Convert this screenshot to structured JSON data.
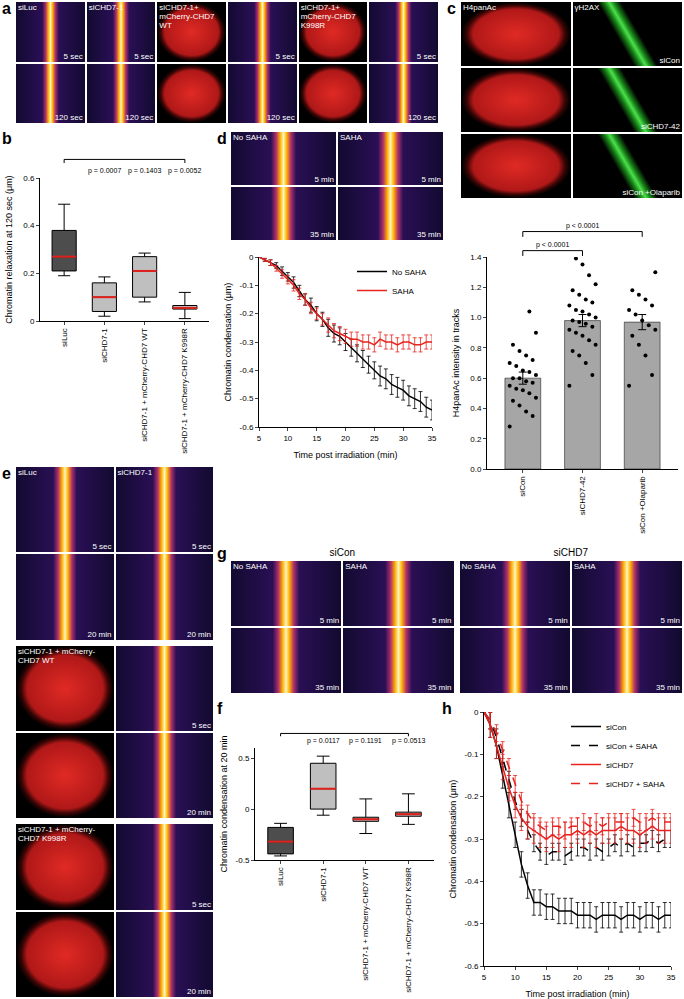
{
  "chart_data": [
    {
      "panel": "b",
      "type": "box",
      "y_label": "Chromatin relaxation at 120 sec (μm)",
      "categories": [
        "siLuc",
        "siCHD7-1",
        "siCHD7-1 + mCherry-CHD7 WT",
        "siCHD7-1 + mCherry-CHD7 K998R"
      ],
      "colors": [
        "#4d4d4d",
        "#bfbfbf",
        "#bfbfbf",
        "#bfbfbf"
      ],
      "lowerfence": [
        0.19,
        0.02,
        0.08,
        0.01
      ],
      "q1": [
        0.21,
        0.04,
        0.1,
        0.05
      ],
      "median": [
        0.27,
        0.1,
        0.21,
        0.055
      ],
      "q3": [
        0.38,
        0.16,
        0.27,
        0.065
      ],
      "upperfence": [
        0.49,
        0.185,
        0.285,
        0.12
      ],
      "ylim": [
        0,
        0.6
      ],
      "yticks": [
        0,
        0.2,
        0.4,
        0.6
      ],
      "annotations": [
        {
          "category": "siCHD7-1",
          "text": "p = 0.0007"
        },
        {
          "category": "siCHD7-1 + mCherry-CHD7 WT",
          "text": "p = 0.1403"
        },
        {
          "category": "siCHD7-1 + mCherry-CHD7 K998R",
          "text": "p = 0.0052"
        }
      ]
    },
    {
      "type": "bar",
      "y_label": "H4panAc intensity in tracks",
      "categories": [
        "siCon",
        "siCHD7-42",
        "siCon +Olaparib"
      ],
      "values": [
        0.6,
        0.98,
        0.97
      ],
      "errors": [
        0.04,
        0.04,
        0.05
      ],
      "color": "#a6a6a6",
      "points": [
        [
          0.28,
          0.35,
          0.38,
          0.42,
          0.45,
          0.47,
          0.5,
          0.52,
          0.53,
          0.55,
          0.57,
          0.58,
          0.6,
          0.6,
          0.62,
          0.64,
          0.65,
          0.68,
          0.7,
          0.72,
          0.75,
          0.78,
          0.82,
          0.9,
          1.04
        ],
        [
          0.55,
          0.62,
          0.7,
          0.75,
          0.78,
          0.82,
          0.85,
          0.88,
          0.9,
          0.92,
          0.94,
          0.96,
          0.97,
          0.98,
          1.0,
          1.02,
          1.04,
          1.05,
          1.08,
          1.1,
          1.12,
          1.15,
          1.18,
          1.22,
          1.28,
          1.35,
          1.39
        ],
        [
          0.55,
          0.62,
          0.75,
          0.82,
          0.88,
          0.92,
          0.95,
          0.98,
          1.02,
          1.05,
          1.08,
          1.12,
          1.15,
          1.18,
          1.3
        ]
      ],
      "ylim": [
        0,
        1.4
      ],
      "yticks": [
        {
          "value": 0,
          "label": "0.0"
        },
        0.2,
        0.4,
        0.6,
        0.8,
        {
          "value": 1,
          "label": "1.0"
        },
        1.2,
        1.4
      ],
      "annotations": [
        {
          "from": "siCon",
          "to": "siCHD7-42",
          "text": "p < 0.0001"
        },
        {
          "from": "siCon",
          "to": "siCon +Olaparib",
          "text": "p < 0.0001"
        }
      ]
    },
    {
      "type": "line",
      "x_label": "Time post irradiation (min)",
      "y_label": "Chromatin condensation (μm)",
      "x": [
        5,
        6,
        7,
        8,
        9,
        10,
        11,
        12,
        13,
        14,
        15,
        16,
        17,
        18,
        19,
        20,
        21,
        22,
        23,
        24,
        25,
        26,
        27,
        28,
        29,
        30,
        31,
        32,
        33,
        34,
        35
      ],
      "xlim": [
        5,
        35
      ],
      "xticks": [
        5,
        10,
        15,
        20,
        25,
        30,
        35
      ],
      "ylim": [
        -0.6,
        0
      ],
      "yticks": [
        0,
        -0.1,
        -0.2,
        -0.3,
        -0.4,
        -0.5,
        -0.6
      ],
      "legend": "top right",
      "series": [
        {
          "name": "No SAHA",
          "color": "#000000",
          "line_style": "solid",
          "values": [
            0,
            -0.01,
            -0.02,
            -0.03,
            -0.05,
            -0.07,
            -0.09,
            -0.12,
            -0.15,
            -0.17,
            -0.2,
            -0.22,
            -0.25,
            -0.27,
            -0.28,
            -0.3,
            -0.32,
            -0.34,
            -0.36,
            -0.38,
            -0.4,
            -0.42,
            -0.43,
            -0.45,
            -0.46,
            -0.47,
            -0.49,
            -0.5,
            -0.51,
            -0.53,
            -0.54
          ],
          "errors": [
            0,
            0.005,
            0.01,
            0.01,
            0.015,
            0.015,
            0.02,
            0.02,
            0.02,
            0.025,
            0.025,
            0.025,
            0.03,
            0.03,
            0.03,
            0.03,
            0.03,
            0.03,
            0.03,
            0.03,
            0.03,
            0.035,
            0.035,
            0.035,
            0.035,
            0.035,
            0.035,
            0.035,
            0.035,
            0.035,
            0.035
          ]
        },
        {
          "name": "SAHA",
          "color": "#e8231f",
          "line_style": "solid",
          "values": [
            0,
            -0.01,
            -0.02,
            -0.04,
            -0.06,
            -0.08,
            -0.1,
            -0.13,
            -0.15,
            -0.18,
            -0.2,
            -0.22,
            -0.24,
            -0.26,
            -0.27,
            -0.28,
            -0.29,
            -0.29,
            -0.3,
            -0.3,
            -0.31,
            -0.29,
            -0.3,
            -0.3,
            -0.31,
            -0.3,
            -0.3,
            -0.31,
            -0.31,
            -0.3,
            -0.3
          ],
          "errors": [
            0,
            0.005,
            0.01,
            0.01,
            0.015,
            0.015,
            0.02,
            0.02,
            0.02,
            0.02,
            0.02,
            0.02,
            0.025,
            0.025,
            0.025,
            0.025,
            0.025,
            0.025,
            0.025,
            0.025,
            0.025,
            0.025,
            0.025,
            0.025,
            0.025,
            0.025,
            0.025,
            0.025,
            0.025,
            0.025,
            0.025
          ]
        }
      ]
    },
    {
      "panel": "f",
      "type": "box",
      "y_label": "Chromatin condensation at 20 min",
      "categories": [
        "siLuc",
        "siCHD7-1",
        "siCHD7-1 + mCherry-CHD7 WT",
        "siCHD7-1 + mCherry-CHD7 K998R"
      ],
      "colors": [
        "#4d4d4d",
        "#bfbfbf",
        "#bfbfbf",
        "#bfbfbf"
      ],
      "lowerfence": [
        -0.46,
        -0.06,
        -0.24,
        -0.15
      ],
      "q1": [
        -0.44,
        0.0,
        -0.12,
        -0.07
      ],
      "median": [
        -0.32,
        0.2,
        -0.1,
        -0.05
      ],
      "q3": [
        -0.18,
        0.45,
        -0.08,
        -0.03
      ],
      "upperfence": [
        -0.14,
        0.52,
        0.1,
        0.15
      ],
      "ylim": [
        -0.5,
        0.6
      ],
      "yticks": [
        -0.5,
        0,
        0.5
      ],
      "annotations": [
        {
          "category": "siCHD7-1",
          "text": "p = 0.0117"
        },
        {
          "category": "siCHD7-1 + mCherry-CHD7 WT",
          "text": "p = 0.1191"
        },
        {
          "category": "siCHD7-1 + mCherry-CHD7 K998R",
          "text": "p = 0.0513"
        }
      ]
    },
    {
      "panel": "h",
      "type": "line",
      "x_label": "Time post irradiation (min)",
      "y_label": "Chromatin condensation (μm)",
      "x": [
        5,
        6,
        7,
        8,
        9,
        10,
        11,
        12,
        13,
        14,
        15,
        16,
        17,
        18,
        19,
        20,
        21,
        22,
        23,
        24,
        25,
        26,
        27,
        28,
        29,
        30,
        31,
        32,
        33,
        34,
        35
      ],
      "xlim": [
        5,
        35
      ],
      "xticks": [
        5,
        10,
        15,
        20,
        25,
        30,
        35
      ],
      "ylim": [
        -0.6,
        0
      ],
      "yticks": [
        0,
        -0.1,
        -0.2,
        -0.3,
        -0.4,
        -0.5,
        -0.6
      ],
      "legend": "top right",
      "series": [
        {
          "name": "siCon",
          "color": "#000000",
          "line_style": "solid",
          "values": [
            0,
            -0.03,
            -0.08,
            -0.15,
            -0.22,
            -0.29,
            -0.36,
            -0.41,
            -0.45,
            -0.45,
            -0.46,
            -0.46,
            -0.47,
            -0.47,
            -0.47,
            -0.48,
            -0.48,
            -0.48,
            -0.49,
            -0.48,
            -0.48,
            -0.48,
            -0.49,
            -0.48,
            -0.48,
            -0.49,
            -0.48,
            -0.48,
            -0.49,
            -0.48,
            -0.48
          ],
          "errors": [
            0,
            0.03,
            0.03,
            0.03,
            0.03,
            0.03,
            0.03,
            0.03,
            0.03,
            0.03,
            0.03,
            0.03,
            0.03,
            0.03,
            0.03,
            0.03,
            0.03,
            0.03,
            0.03,
            0.03,
            0.03,
            0.03,
            0.03,
            0.03,
            0.03,
            0.03,
            0.03,
            0.03,
            0.03,
            0.03,
            0.03
          ]
        },
        {
          "name": "siCon + SAHA",
          "color": "#000000",
          "line_style": "dashed",
          "values": [
            0,
            -0.02,
            -0.06,
            -0.11,
            -0.16,
            -0.21,
            -0.25,
            -0.28,
            -0.31,
            -0.33,
            -0.34,
            -0.33,
            -0.33,
            -0.34,
            -0.33,
            -0.32,
            -0.32,
            -0.33,
            -0.32,
            -0.33,
            -0.32,
            -0.31,
            -0.32,
            -0.31,
            -0.32,
            -0.31,
            -0.31,
            -0.3,
            -0.31,
            -0.3,
            -0.3
          ],
          "errors": [
            0,
            0.02,
            0.02,
            0.02,
            0.02,
            0.02,
            0.02,
            0.02,
            0.02,
            0.02,
            0.02,
            0.02,
            0.02,
            0.02,
            0.02,
            0.02,
            0.02,
            0.02,
            0.02,
            0.02,
            0.02,
            0.02,
            0.02,
            0.02,
            0.02,
            0.02,
            0.02,
            0.02,
            0.02,
            0.02,
            0.02
          ]
        },
        {
          "name": "siCHD7",
          "color": "#e8231f",
          "line_style": "solid",
          "values": [
            0,
            -0.03,
            -0.08,
            -0.13,
            -0.18,
            -0.22,
            -0.25,
            -0.27,
            -0.28,
            -0.29,
            -0.3,
            -0.29,
            -0.3,
            -0.29,
            -0.29,
            -0.28,
            -0.29,
            -0.28,
            -0.29,
            -0.28,
            -0.28,
            -0.28,
            -0.27,
            -0.28,
            -0.28,
            -0.29,
            -0.28,
            -0.27,
            -0.28,
            -0.28,
            -0.28
          ],
          "errors": [
            0,
            0.03,
            0.03,
            0.03,
            0.03,
            0.03,
            0.03,
            0.03,
            0.03,
            0.03,
            0.03,
            0.03,
            0.03,
            0.03,
            0.03,
            0.03,
            0.03,
            0.03,
            0.03,
            0.03,
            0.03,
            0.03,
            0.03,
            0.03,
            0.03,
            0.03,
            0.03,
            0.03,
            0.03,
            0.03,
            0.03
          ]
        },
        {
          "name": "siCHD7 + SAHA",
          "color": "#e8231f",
          "line_style": "dashed",
          "values": [
            0,
            -0.02,
            -0.05,
            -0.09,
            -0.13,
            -0.17,
            -0.21,
            -0.24,
            -0.26,
            -0.27,
            -0.28,
            -0.27,
            -0.27,
            -0.28,
            -0.27,
            -0.27,
            -0.26,
            -0.27,
            -0.26,
            -0.27,
            -0.26,
            -0.26,
            -0.26,
            -0.26,
            -0.25,
            -0.26,
            -0.26,
            -0.25,
            -0.26,
            -0.26,
            -0.26
          ],
          "errors": [
            0,
            0.02,
            0.02,
            0.02,
            0.02,
            0.02,
            0.02,
            0.02,
            0.02,
            0.02,
            0.02,
            0.02,
            0.02,
            0.02,
            0.02,
            0.02,
            0.02,
            0.02,
            0.02,
            0.02,
            0.02,
            0.02,
            0.02,
            0.02,
            0.02,
            0.02,
            0.02,
            0.02,
            0.02,
            0.02,
            0.02
          ]
        }
      ]
    }
  ],
  "image_panels": [
    {
      "panel": "a",
      "groups": [
        {
          "labels": [
            "siLuc",
            "siCHD7-1",
            "siCHD7-1+ mCherry-CHD7 WT",
            null,
            "siCHD7-1+ mCherry-CHD7 K998R",
            null
          ],
          "colors": [
            "fire",
            "fire",
            "red",
            "fire",
            "red",
            "fire"
          ],
          "rows": [
            "5 sec",
            "120 sec"
          ]
        }
      ]
    },
    {
      "panel": "c",
      "groups": [
        {
          "labels": [
            "H4panAc",
            "γH2AX"
          ],
          "colors": [
            "red",
            "green"
          ],
          "rows": [
            "siCon",
            "siCHD7-42",
            "siCon +Olaparib"
          ]
        }
      ]
    },
    {
      "panel": "d",
      "groups": [
        {
          "labels": [
            "No SAHA",
            "SAHA"
          ],
          "colors": [
            "fire",
            "fire"
          ],
          "rows": [
            "5 min",
            "35 min"
          ]
        }
      ]
    },
    {
      "panel": "e",
      "groups": [
        {
          "labels": [
            "siLuc",
            "siCHD7-1"
          ],
          "colors": [
            "fire",
            "fire"
          ],
          "rows": [
            "5 sec",
            "20 min"
          ]
        },
        {
          "labels": [
            "siCHD7-1 + mCherry-CHD7 WT",
            null
          ],
          "colors": [
            "red",
            "fire"
          ],
          "rows": [
            "5 sec",
            "20 min"
          ]
        },
        {
          "labels": [
            "siCHD7-1 + mCherry-CHD7 K998R",
            null
          ],
          "colors": [
            "red",
            "fire"
          ],
          "rows": [
            "5 sec",
            "20 min"
          ]
        }
      ]
    },
    {
      "panel": "g",
      "groups": [
        {
          "heading": "siCon",
          "labels": [
            "No SAHA",
            "SAHA"
          ],
          "colors": [
            "fire",
            "fire"
          ],
          "rows": [
            "5 min",
            "35 min"
          ]
        },
        {
          "heading": "siCHD7",
          "labels": [
            "No SAHA",
            "SAHA"
          ],
          "colors": [
            "fire",
            "fire"
          ],
          "rows": [
            "5 min",
            "35 min"
          ]
        }
      ]
    }
  ]
}
